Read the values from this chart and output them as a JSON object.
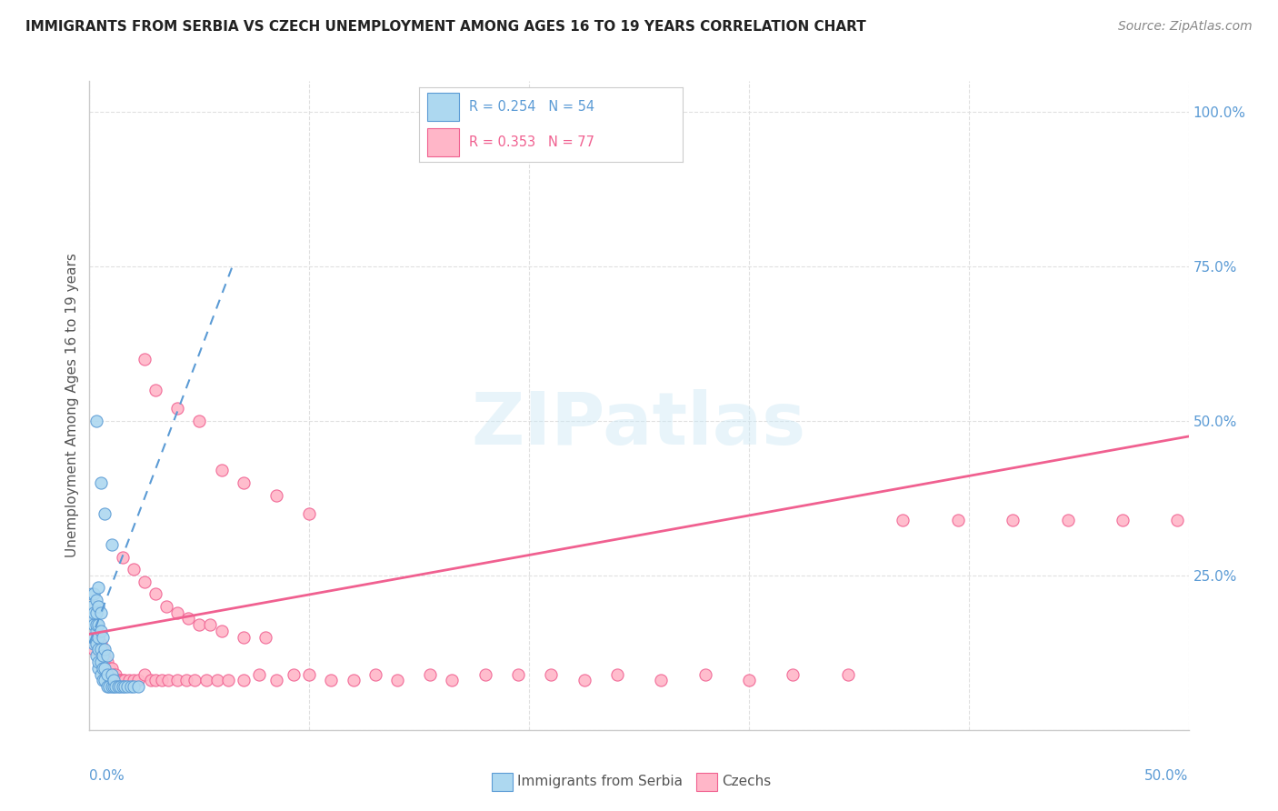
{
  "title": "IMMIGRANTS FROM SERBIA VS CZECH UNEMPLOYMENT AMONG AGES 16 TO 19 YEARS CORRELATION CHART",
  "source": "Source: ZipAtlas.com",
  "ylabel": "Unemployment Among Ages 16 to 19 years",
  "xlim": [
    0.0,
    0.5
  ],
  "ylim": [
    0.0,
    1.05
  ],
  "color_serbia": "#add8f0",
  "color_czechs": "#ffb6c8",
  "color_line_serbia": "#5b9bd5",
  "color_line_czechs": "#f06090",
  "watermark": "ZIPatlas",
  "serbia_scatter_x": [
    0.001,
    0.001,
    0.001,
    0.002,
    0.002,
    0.002,
    0.002,
    0.002,
    0.003,
    0.003,
    0.003,
    0.003,
    0.003,
    0.003,
    0.004,
    0.004,
    0.004,
    0.004,
    0.004,
    0.004,
    0.004,
    0.005,
    0.005,
    0.005,
    0.005,
    0.005,
    0.006,
    0.006,
    0.006,
    0.006,
    0.007,
    0.007,
    0.007,
    0.008,
    0.008,
    0.008,
    0.009,
    0.01,
    0.01,
    0.011,
    0.011,
    0.012,
    0.013,
    0.014,
    0.015,
    0.016,
    0.017,
    0.019,
    0.02,
    0.022,
    0.003,
    0.005,
    0.007,
    0.01
  ],
  "serbia_scatter_y": [
    0.18,
    0.2,
    0.22,
    0.14,
    0.15,
    0.17,
    0.19,
    0.22,
    0.12,
    0.14,
    0.16,
    0.17,
    0.19,
    0.21,
    0.1,
    0.11,
    0.13,
    0.15,
    0.17,
    0.2,
    0.23,
    0.09,
    0.11,
    0.13,
    0.16,
    0.19,
    0.08,
    0.1,
    0.12,
    0.15,
    0.08,
    0.1,
    0.13,
    0.07,
    0.09,
    0.12,
    0.07,
    0.07,
    0.09,
    0.07,
    0.08,
    0.07,
    0.07,
    0.07,
    0.07,
    0.07,
    0.07,
    0.07,
    0.07,
    0.07,
    0.5,
    0.4,
    0.35,
    0.3
  ],
  "czechs_scatter_x": [
    0.002,
    0.003,
    0.004,
    0.005,
    0.006,
    0.007,
    0.008,
    0.009,
    0.01,
    0.011,
    0.012,
    0.013,
    0.014,
    0.015,
    0.016,
    0.018,
    0.02,
    0.022,
    0.025,
    0.028,
    0.03,
    0.033,
    0.036,
    0.04,
    0.044,
    0.048,
    0.053,
    0.058,
    0.063,
    0.07,
    0.077,
    0.085,
    0.093,
    0.1,
    0.11,
    0.12,
    0.13,
    0.14,
    0.155,
    0.165,
    0.18,
    0.195,
    0.21,
    0.225,
    0.24,
    0.26,
    0.28,
    0.3,
    0.32,
    0.345,
    0.37,
    0.395,
    0.42,
    0.445,
    0.47,
    0.495,
    0.025,
    0.03,
    0.04,
    0.05,
    0.06,
    0.07,
    0.085,
    0.1,
    0.015,
    0.02,
    0.025,
    0.03,
    0.035,
    0.04,
    0.045,
    0.05,
    0.055,
    0.06,
    0.07,
    0.08
  ],
  "czechs_scatter_y": [
    0.13,
    0.14,
    0.15,
    0.14,
    0.13,
    0.12,
    0.11,
    0.1,
    0.1,
    0.09,
    0.09,
    0.08,
    0.08,
    0.08,
    0.08,
    0.08,
    0.08,
    0.08,
    0.09,
    0.08,
    0.08,
    0.08,
    0.08,
    0.08,
    0.08,
    0.08,
    0.08,
    0.08,
    0.08,
    0.08,
    0.09,
    0.08,
    0.09,
    0.09,
    0.08,
    0.08,
    0.09,
    0.08,
    0.09,
    0.08,
    0.09,
    0.09,
    0.09,
    0.08,
    0.09,
    0.08,
    0.09,
    0.08,
    0.09,
    0.09,
    0.34,
    0.34,
    0.34,
    0.34,
    0.34,
    0.34,
    0.6,
    0.55,
    0.52,
    0.5,
    0.42,
    0.4,
    0.38,
    0.35,
    0.28,
    0.26,
    0.24,
    0.22,
    0.2,
    0.19,
    0.18,
    0.17,
    0.17,
    0.16,
    0.15,
    0.15
  ],
  "serbia_line_x": [
    0.0,
    0.065
  ],
  "serbia_line_y": [
    0.14,
    0.75
  ],
  "czechs_line_x": [
    0.0,
    0.5
  ],
  "czechs_line_y": [
    0.155,
    0.475
  ],
  "background_color": "#ffffff",
  "grid_color": "#e0e0e0",
  "title_color": "#222222",
  "ytick_color": "#5b9bd5",
  "xtick_color": "#5b9bd5"
}
